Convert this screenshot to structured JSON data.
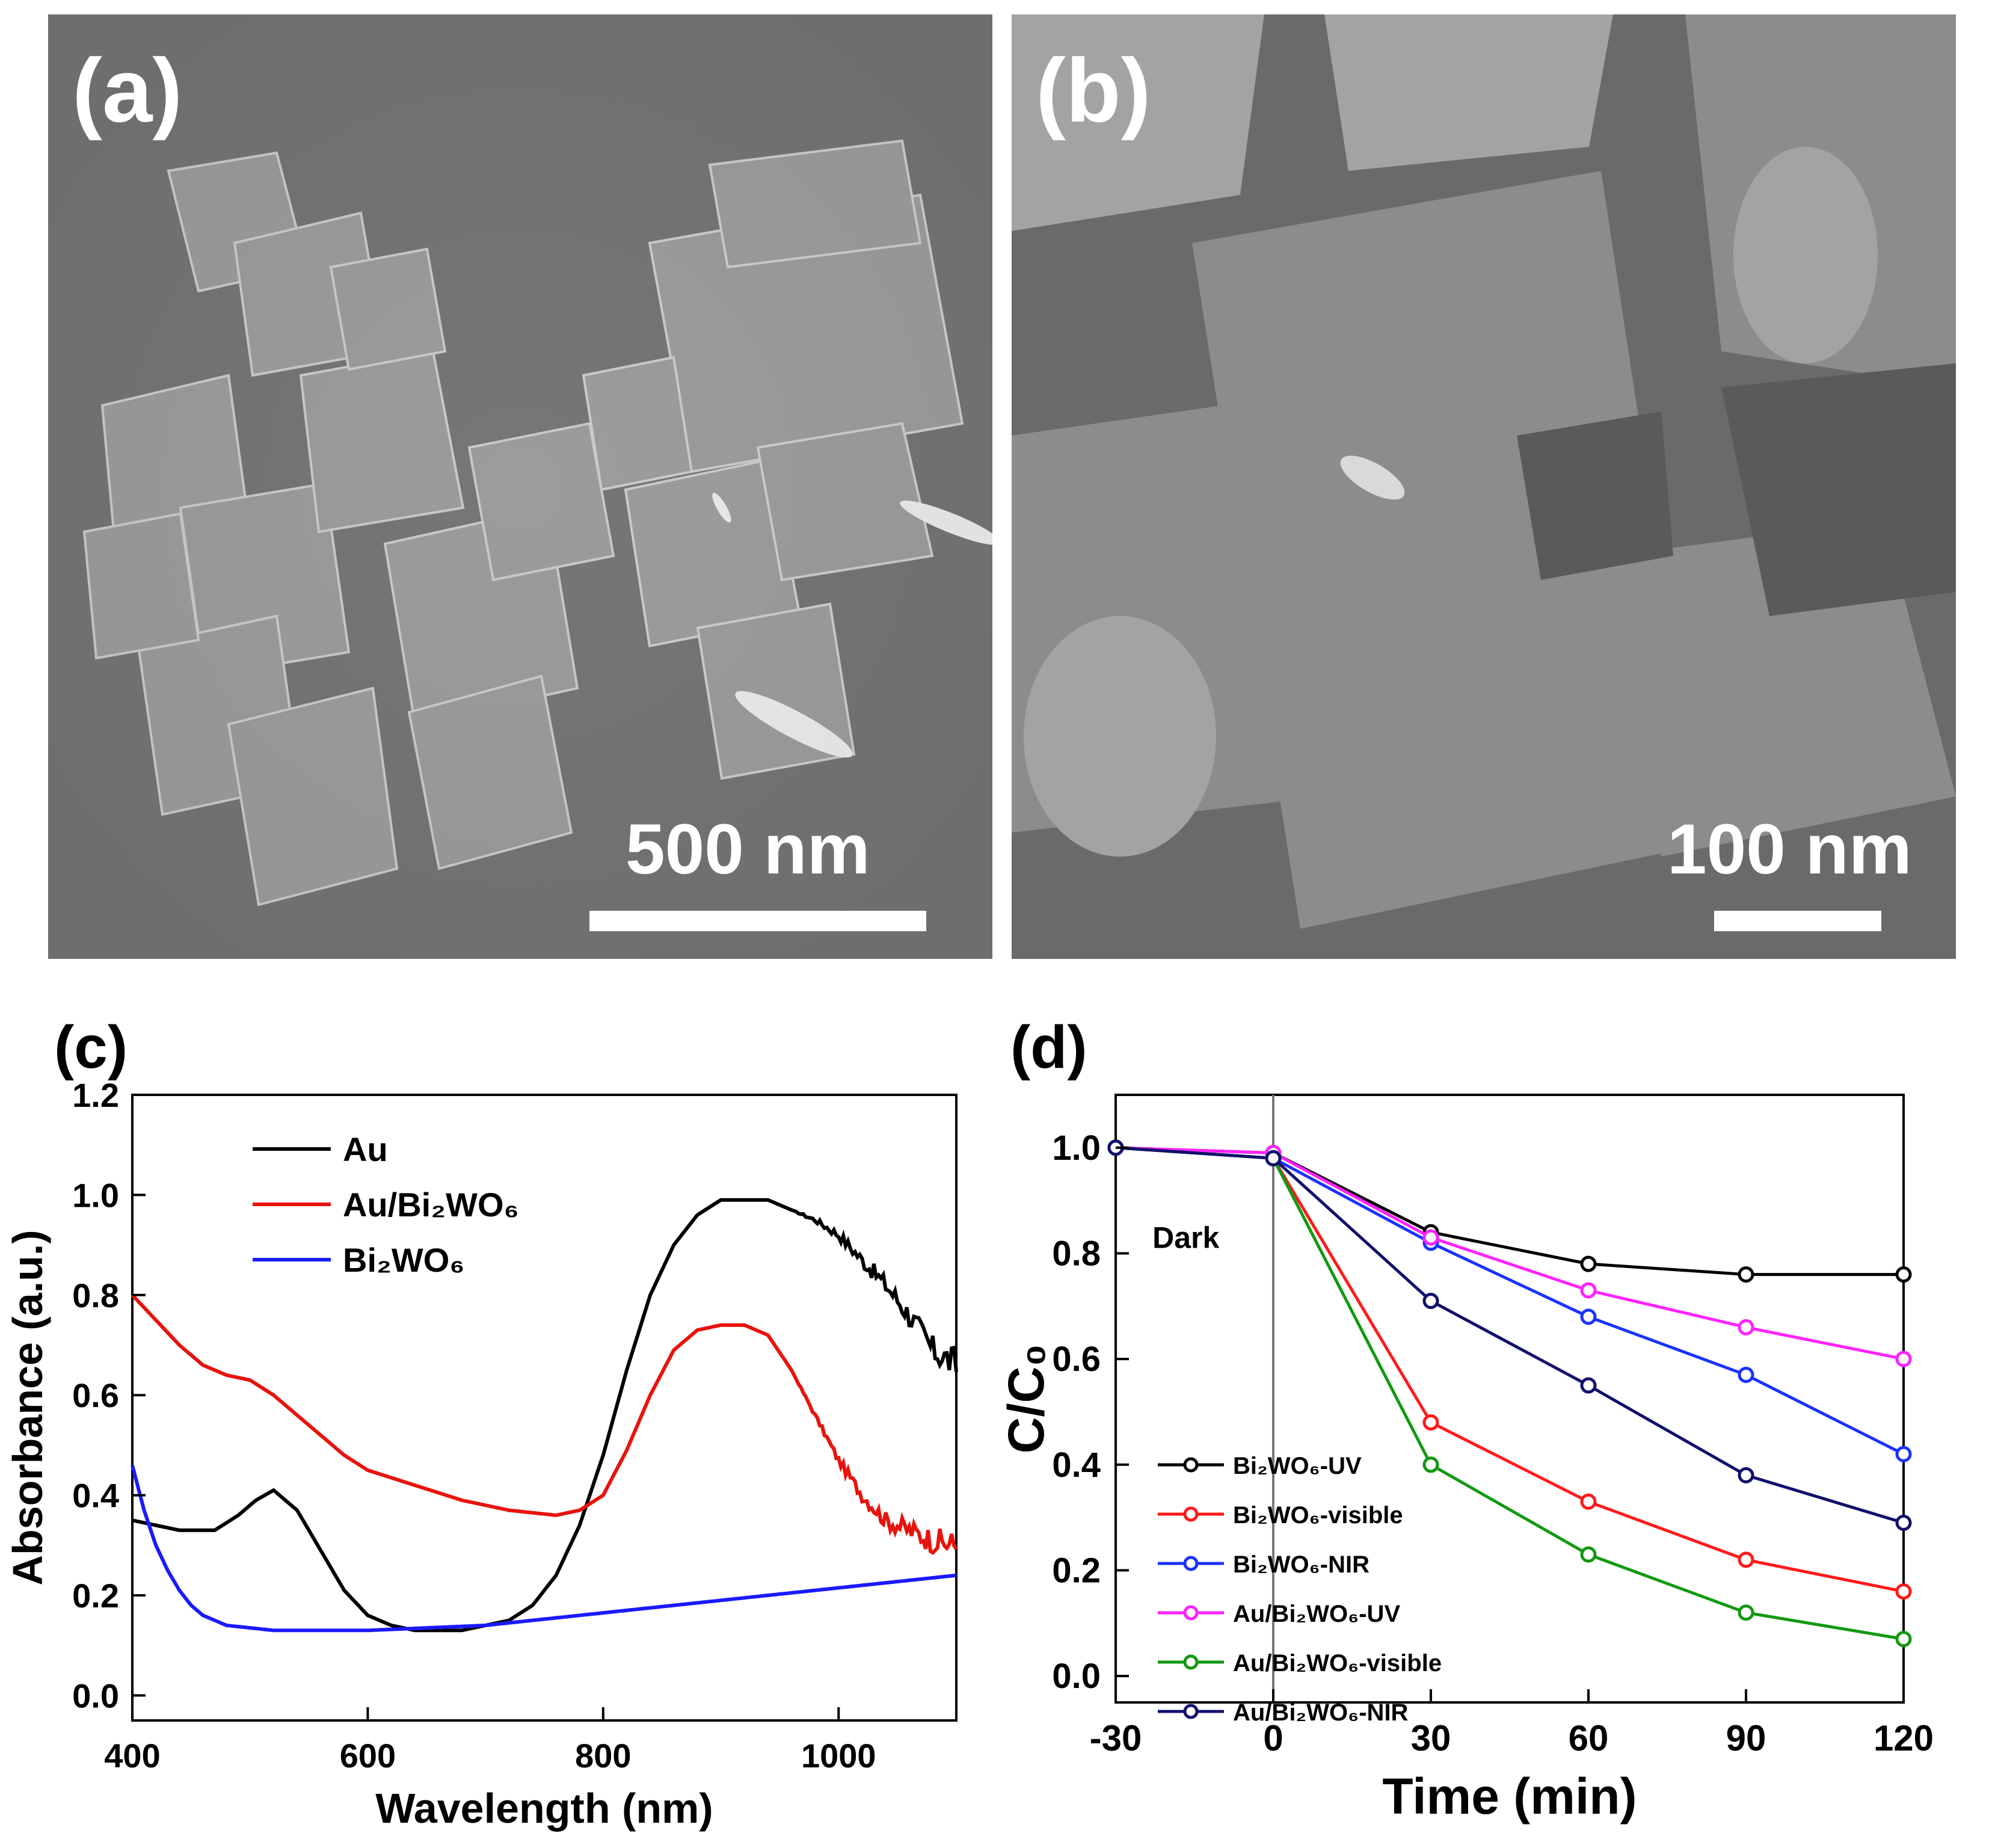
{
  "panels": {
    "a": {
      "label": "(a)",
      "scale_bar_text": "500 nm"
    },
    "b": {
      "label": "(b)",
      "scale_bar_text": "100 nm"
    },
    "c": {
      "label": "(c)"
    },
    "d": {
      "label": "(d)"
    }
  },
  "chart_data": [
    {
      "panel": "(c)",
      "type": "line",
      "xlabel": "Wavelength (nm)",
      "ylabel": "Absorbance (a.u.)",
      "xlim": [
        400,
        1100
      ],
      "ylim": [
        -0.05,
        1.2
      ],
      "xticks": [
        "400",
        "600",
        "800",
        "1000"
      ],
      "xtick_values": [
        400,
        600,
        800,
        1000
      ],
      "yticks": [
        "0.0",
        "0.2",
        "0.4",
        "0.6",
        "0.8",
        "1.0",
        "1.2"
      ],
      "ytick_values": [
        0.0,
        0.2,
        0.4,
        0.6,
        0.8,
        1.0,
        1.2
      ],
      "legend_position": "top-left",
      "series": [
        {
          "name": "Au",
          "color": "#000000",
          "noise": 0.035,
          "x": [
            400,
            440,
            470,
            490,
            505,
            520,
            540,
            560,
            580,
            600,
            620,
            640,
            660,
            680,
            700,
            720,
            740,
            760,
            780,
            800,
            820,
            840,
            860,
            880,
            900,
            920,
            940,
            960,
            980,
            1000,
            1020,
            1040,
            1060,
            1080,
            1100
          ],
          "y": [
            0.35,
            0.33,
            0.33,
            0.36,
            0.39,
            0.41,
            0.37,
            0.29,
            0.21,
            0.16,
            0.14,
            0.13,
            0.13,
            0.13,
            0.14,
            0.15,
            0.18,
            0.24,
            0.34,
            0.48,
            0.65,
            0.8,
            0.9,
            0.96,
            0.99,
            0.99,
            0.99,
            0.97,
            0.95,
            0.92,
            0.87,
            0.82,
            0.76,
            0.69,
            0.66
          ]
        },
        {
          "name": "Au/Bi₂WO₆",
          "color": "#e8130c",
          "noise": 0.03,
          "x": [
            400,
            420,
            440,
            460,
            480,
            500,
            520,
            540,
            560,
            580,
            600,
            640,
            680,
            720,
            760,
            780,
            800,
            820,
            840,
            860,
            880,
            900,
            920,
            940,
            960,
            980,
            1000,
            1020,
            1040,
            1060,
            1080,
            1100
          ],
          "y": [
            0.8,
            0.75,
            0.7,
            0.66,
            0.64,
            0.63,
            0.6,
            0.56,
            0.52,
            0.48,
            0.45,
            0.42,
            0.39,
            0.37,
            0.36,
            0.37,
            0.4,
            0.49,
            0.6,
            0.69,
            0.73,
            0.74,
            0.74,
            0.72,
            0.65,
            0.56,
            0.47,
            0.4,
            0.35,
            0.33,
            0.31,
            0.3
          ]
        },
        {
          "name": "Bi₂WO₆",
          "color": "#1a1aff",
          "noise": 0,
          "x": [
            400,
            410,
            420,
            430,
            440,
            450,
            460,
            470,
            480,
            500,
            520,
            540,
            560,
            600,
            650,
            700,
            800,
            900,
            1000,
            1100
          ],
          "y": [
            0.46,
            0.37,
            0.3,
            0.25,
            0.21,
            0.18,
            0.16,
            0.15,
            0.14,
            0.135,
            0.13,
            0.13,
            0.13,
            0.13,
            0.135,
            0.14,
            0.165,
            0.19,
            0.215,
            0.24
          ]
        }
      ]
    },
    {
      "panel": "(d)",
      "type": "line",
      "xlabel": "Time (min)",
      "ylabel": "C/C₀",
      "xlim": [
        -30,
        120
      ],
      "ylim": [
        -0.05,
        1.1
      ],
      "xticks": [
        "-30",
        "0",
        "30",
        "60",
        "90",
        "120"
      ],
      "xtick_values": [
        -30,
        0,
        30,
        60,
        90,
        120
      ],
      "yticks": [
        "0.0",
        "0.2",
        "0.4",
        "0.6",
        "0.8",
        "1.0"
      ],
      "ytick_values": [
        0.0,
        0.2,
        0.4,
        0.6,
        0.8,
        1.0
      ],
      "annotations": [
        {
          "text": "Dark",
          "x": -23,
          "y": 0.81
        }
      ],
      "vline_x": 0,
      "legend_position": "bottom-left",
      "series": [
        {
          "name": "Bi₂WO₆-UV",
          "color": "#000000",
          "x": [
            -30,
            0,
            30,
            60,
            90,
            120
          ],
          "y": [
            1.0,
            0.99,
            0.84,
            0.78,
            0.76,
            0.76
          ]
        },
        {
          "name": "Bi₂WO₆-visible",
          "color": "#ff1a1a",
          "x": [
            -30,
            0,
            30,
            60,
            90,
            120
          ],
          "y": [
            1.0,
            0.98,
            0.48,
            0.33,
            0.22,
            0.16
          ]
        },
        {
          "name": "Bi₂WO₆-NIR",
          "color": "#1a33ff",
          "x": [
            -30,
            0,
            30,
            60,
            90,
            120
          ],
          "y": [
            1.0,
            0.98,
            0.82,
            0.68,
            0.57,
            0.42
          ]
        },
        {
          "name": "Au/Bi₂WO₆-UV",
          "color": "#ff22ff",
          "x": [
            -30,
            0,
            30,
            60,
            90,
            120
          ],
          "y": [
            1.0,
            0.99,
            0.83,
            0.73,
            0.66,
            0.6
          ]
        },
        {
          "name": "Au/Bi₂WO₆-visible",
          "color": "#119911",
          "x": [
            -30,
            0,
            30,
            60,
            90,
            120
          ],
          "y": [
            1.0,
            0.98,
            0.4,
            0.23,
            0.12,
            0.07
          ]
        },
        {
          "name": "Au/Bi₂WO₆-NIR",
          "color": "#10106b",
          "x": [
            -30,
            0,
            30,
            60,
            90,
            120
          ],
          "y": [
            1.0,
            0.98,
            0.71,
            0.55,
            0.38,
            0.29
          ]
        }
      ]
    }
  ]
}
